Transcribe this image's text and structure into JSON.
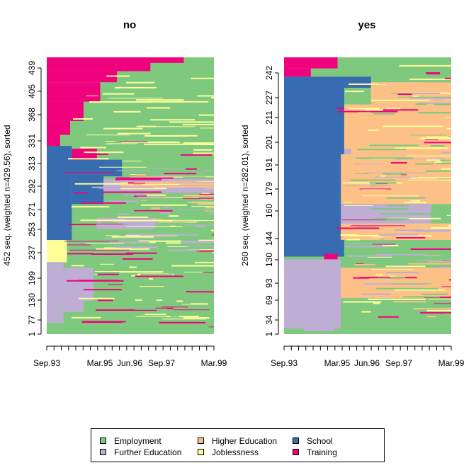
{
  "chart_data": {
    "type": "sequence-index-plot",
    "states": [
      {
        "key": "employment",
        "label": "Employment",
        "color": "#7FC97F"
      },
      {
        "key": "further",
        "label": "Further Education",
        "color": "#BEAED4"
      },
      {
        "key": "higher",
        "label": "Higher Education",
        "color": "#FDC086"
      },
      {
        "key": "jobless",
        "label": "Joblessness",
        "color": "#FFFF99"
      },
      {
        "key": "school",
        "label": "School",
        "color": "#386CB0"
      },
      {
        "key": "training",
        "label": "Training",
        "color": "#F0027F"
      }
    ],
    "x_tick_labels": [
      "Sep.93",
      "Mar.95",
      "Jun.96",
      "Sep.97",
      "Mar.99"
    ],
    "x_tick_count": 24,
    "panels": [
      {
        "title": "no",
        "ylabel": "452 seq. (weighted n=429.56), sorted",
        "ytick_labels": [
          "1",
          "77",
          "130",
          "199",
          "237",
          "253",
          "271",
          "292",
          "313",
          "331",
          "368",
          "405",
          "439"
        ]
      },
      {
        "title": "yes",
        "ylabel": "260 seq. (weighted n=282.01), sorted",
        "ytick_labels": [
          "1",
          "34",
          "69",
          "93",
          "130",
          "144",
          "160",
          "179",
          "191",
          "201",
          "211",
          "227",
          "242"
        ]
      }
    ]
  },
  "legend": {
    "items": [
      "Employment",
      "Further Education",
      "Higher Education",
      "Joblessness",
      "School",
      "Training"
    ]
  }
}
